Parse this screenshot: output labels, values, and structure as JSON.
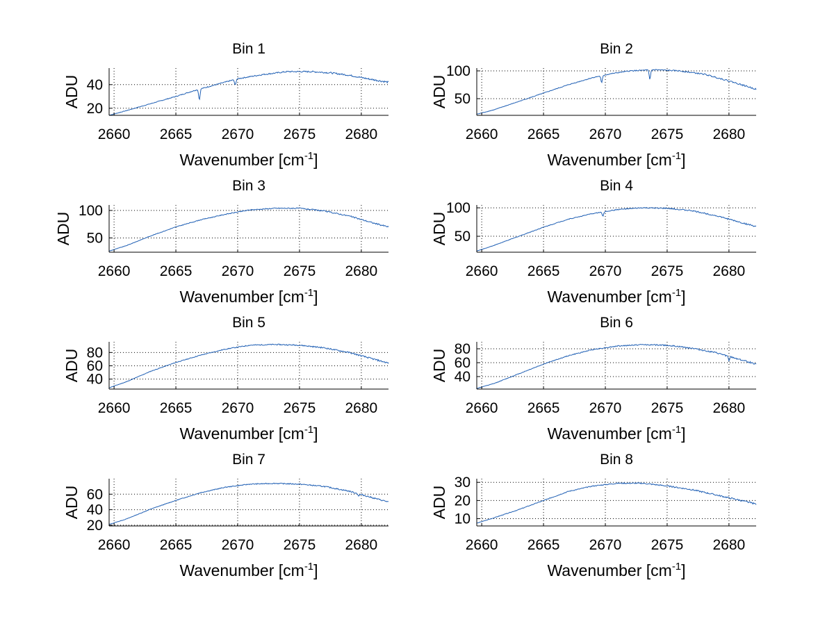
{
  "figure": {
    "background": "#ffffff",
    "line_color": "#1f5fb4"
  },
  "chart_data": [
    {
      "type": "line",
      "title": "Bin 1",
      "xlabel": "Wavenumber [cm",
      "xlabel_sup": "-1",
      "xlabel_close": "]",
      "ylabel": "ADU",
      "xlim": [
        2659.6,
        2682.2
      ],
      "ylim": [
        14,
        54
      ],
      "xticks": [
        2660,
        2665,
        2670,
        2675,
        2680
      ],
      "yticks": [
        20,
        40
      ],
      "x": [
        2659.6,
        2661,
        2663,
        2665,
        2666.5,
        2667.9,
        2670,
        2672,
        2674,
        2676,
        2677.5,
        2679,
        2680.5,
        2682.2
      ],
      "y": [
        14,
        18,
        24,
        30,
        35,
        39,
        45,
        48.5,
        51,
        51,
        50,
        48,
        45,
        42
      ],
      "dips": [
        {
          "x": 2666.9,
          "depth": 9
        },
        {
          "x": 2669.8,
          "depth": 5
        }
      ],
      "noise": 0.6
    },
    {
      "type": "line",
      "title": "Bin 2",
      "xlabel": "Wavenumber [cm",
      "xlabel_sup": "-1",
      "xlabel_close": "]",
      "ylabel": "ADU",
      "xlim": [
        2659.6,
        2682.2
      ],
      "ylim": [
        20,
        105
      ],
      "xticks": [
        2660,
        2665,
        2670,
        2675,
        2680
      ],
      "yticks": [
        50,
        100
      ],
      "x": [
        2659.6,
        2661,
        2663,
        2665,
        2667,
        2669,
        2670.5,
        2672,
        2674,
        2676,
        2678,
        2680,
        2682.2
      ],
      "y": [
        22,
        30,
        45,
        60,
        75,
        88,
        95,
        100,
        102,
        100,
        94,
        82,
        67
      ],
      "dips": [
        {
          "x": 2669.7,
          "depth": 13
        },
        {
          "x": 2673.6,
          "depth": 17
        }
      ],
      "noise": 1.0
    },
    {
      "type": "line",
      "title": "Bin 3",
      "xlabel": "Wavenumber [cm",
      "xlabel_sup": "-1",
      "xlabel_close": "]",
      "ylabel": "ADU",
      "xlim": [
        2659.6,
        2682.2
      ],
      "ylim": [
        24,
        110
      ],
      "xticks": [
        2660,
        2665,
        2670,
        2675,
        2680
      ],
      "yticks": [
        50,
        100
      ],
      "x": [
        2659.6,
        2661,
        2663,
        2665,
        2667,
        2669,
        2671,
        2673,
        2675,
        2677,
        2679,
        2681,
        2682.2
      ],
      "y": [
        26,
        36,
        54,
        70,
        83,
        93,
        101,
        104,
        104,
        99,
        90,
        77,
        70
      ],
      "dips": [],
      "noise": 1.0
    },
    {
      "type": "line",
      "title": "Bin 4",
      "xlabel": "Wavenumber [cm",
      "xlabel_sup": "-1",
      "xlabel_close": "]",
      "ylabel": "ADU",
      "xlim": [
        2659.6,
        2682.2
      ],
      "ylim": [
        22,
        105
      ],
      "xticks": [
        2660,
        2665,
        2670,
        2675,
        2680
      ],
      "yticks": [
        50,
        100
      ],
      "x": [
        2659.6,
        2661,
        2663,
        2665,
        2667,
        2669,
        2671,
        2673,
        2675,
        2677,
        2679,
        2681,
        2682.2
      ],
      "y": [
        24,
        34,
        50,
        66,
        80,
        90,
        97,
        100,
        99,
        95,
        86,
        74,
        67
      ],
      "dips": [
        {
          "x": 2669.8,
          "depth": 8
        }
      ],
      "noise": 1.0
    },
    {
      "type": "line",
      "title": "Bin 5",
      "xlabel": "Wavenumber [cm",
      "xlabel_sup": "-1",
      "xlabel_close": "]",
      "ylabel": "ADU",
      "xlim": [
        2659.6,
        2682.2
      ],
      "ylim": [
        25,
        96
      ],
      "xticks": [
        2660,
        2665,
        2670,
        2675,
        2680
      ],
      "yticks": [
        40,
        60,
        80
      ],
      "x": [
        2659.6,
        2661,
        2663,
        2665,
        2667,
        2669,
        2671,
        2673,
        2675,
        2677,
        2679,
        2681,
        2682.2
      ],
      "y": [
        27,
        36,
        52,
        65,
        76,
        85,
        91,
        92,
        91,
        87,
        80,
        70,
        64
      ],
      "dips": [],
      "noise": 0.9
    },
    {
      "type": "line",
      "title": "Bin 6",
      "xlabel": "Wavenumber [cm",
      "xlabel_sup": "-1",
      "xlabel_close": "]",
      "ylabel": "ADU",
      "xlim": [
        2659.6,
        2682.2
      ],
      "ylim": [
        22,
        90
      ],
      "xticks": [
        2660,
        2665,
        2670,
        2675,
        2680
      ],
      "yticks": [
        40,
        60,
        80
      ],
      "x": [
        2659.6,
        2661,
        2663,
        2665,
        2667,
        2669,
        2671,
        2673,
        2675,
        2677,
        2679,
        2681,
        2682.2
      ],
      "y": [
        23,
        30,
        44,
        58,
        70,
        79,
        84,
        86,
        85,
        81,
        74,
        64,
        58
      ],
      "dips": [
        {
          "x": 2680,
          "depth": 6
        }
      ],
      "noise": 0.9
    },
    {
      "type": "line",
      "title": "Bin 7",
      "xlabel": "Wavenumber [cm",
      "xlabel_sup": "-1",
      "xlabel_close": "]",
      "ylabel": "ADU",
      "xlim": [
        2659.6,
        2682.2
      ],
      "ylim": [
        19,
        80
      ],
      "xticks": [
        2660,
        2665,
        2670,
        2675,
        2680
      ],
      "yticks": [
        20,
        40,
        60
      ],
      "x": [
        2659.6,
        2661,
        2663,
        2665,
        2667,
        2669,
        2671,
        2673,
        2675,
        2677,
        2679,
        2681,
        2682.2
      ],
      "y": [
        21,
        28,
        41,
        52,
        62,
        69,
        73,
        74,
        73,
        70,
        64,
        55,
        50
      ],
      "dips": [
        {
          "x": 2679.8,
          "depth": 3
        }
      ],
      "noise": 0.7
    },
    {
      "type": "line",
      "title": "Bin 8",
      "xlabel": "Wavenumber [cm",
      "xlabel_sup": "-1",
      "xlabel_close": "]",
      "ylabel": "ADU",
      "xlim": [
        2659.6,
        2682.2
      ],
      "ylim": [
        6,
        32
      ],
      "xticks": [
        2660,
        2665,
        2670,
        2675,
        2680
      ],
      "yticks": [
        10,
        20,
        30
      ],
      "x": [
        2659.6,
        2661,
        2663,
        2665,
        2667,
        2669,
        2671,
        2673,
        2675,
        2677,
        2679,
        2681,
        2682.2
      ],
      "y": [
        7.5,
        10.5,
        15,
        20,
        25,
        28,
        29.5,
        29.5,
        28,
        26,
        23,
        20,
        18
      ],
      "dips": [],
      "noise": 0.35
    }
  ]
}
